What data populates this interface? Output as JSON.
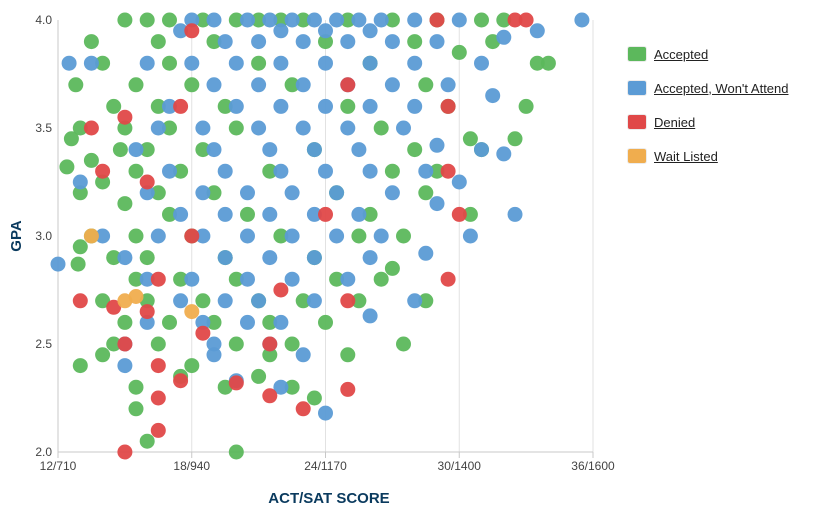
{
  "chart_data": {
    "type": "scatter",
    "title": "",
    "xlabel": "ACT/SAT SCORE",
    "ylabel": "GPA",
    "x_ticks": [
      12,
      18,
      24,
      30,
      36
    ],
    "x_tick_labels": [
      "12/710",
      "18/940",
      "24/1170",
      "30/1400",
      "36/1600"
    ],
    "y_ticks": [
      2.0,
      2.5,
      3.0,
      3.5,
      4.0
    ],
    "y_tick_labels": [
      "2.0",
      "2.5",
      "3.0",
      "3.5",
      "4.0"
    ],
    "xlim": [
      12,
      36
    ],
    "ylim": [
      2.0,
      4.0
    ],
    "grid": "x",
    "legend_position": "right",
    "series": [
      {
        "name": "Accepted",
        "color": "#5cb85c",
        "points": [
          [
            15.0,
            4.0
          ],
          [
            16.0,
            4.0
          ],
          [
            17.0,
            4.0
          ],
          [
            18.5,
            4.0
          ],
          [
            20.0,
            4.0
          ],
          [
            21.0,
            4.0
          ],
          [
            22.0,
            4.0
          ],
          [
            23.0,
            4.0
          ],
          [
            25.0,
            4.0
          ],
          [
            27.0,
            4.0
          ],
          [
            29.0,
            4.0
          ],
          [
            31.0,
            4.0
          ],
          [
            32.0,
            4.0
          ],
          [
            13.5,
            3.9
          ],
          [
            16.5,
            3.9
          ],
          [
            19.0,
            3.9
          ],
          [
            24.0,
            3.9
          ],
          [
            28.0,
            3.9
          ],
          [
            31.5,
            3.9
          ],
          [
            14.0,
            3.8
          ],
          [
            17.0,
            3.8
          ],
          [
            21.0,
            3.8
          ],
          [
            26.0,
            3.8
          ],
          [
            30.0,
            3.85
          ],
          [
            33.5,
            3.8
          ],
          [
            34.0,
            3.8
          ],
          [
            12.8,
            3.7
          ],
          [
            15.5,
            3.7
          ],
          [
            18.0,
            3.7
          ],
          [
            22.5,
            3.7
          ],
          [
            28.5,
            3.7
          ],
          [
            14.5,
            3.6
          ],
          [
            16.5,
            3.6
          ],
          [
            19.5,
            3.6
          ],
          [
            25.0,
            3.6
          ],
          [
            29.5,
            3.6
          ],
          [
            33.0,
            3.6
          ],
          [
            13.0,
            3.5
          ],
          [
            15.0,
            3.5
          ],
          [
            17.0,
            3.5
          ],
          [
            20.0,
            3.5
          ],
          [
            26.5,
            3.5
          ],
          [
            30.5,
            3.45
          ],
          [
            32.5,
            3.45
          ],
          [
            12.6,
            3.45
          ],
          [
            14.8,
            3.4
          ],
          [
            16.0,
            3.4
          ],
          [
            18.5,
            3.4
          ],
          [
            23.5,
            3.4
          ],
          [
            28.0,
            3.4
          ],
          [
            31.0,
            3.4
          ],
          [
            13.5,
            3.35
          ],
          [
            15.5,
            3.3
          ],
          [
            17.5,
            3.3
          ],
          [
            21.5,
            3.3
          ],
          [
            27.0,
            3.3
          ],
          [
            29.0,
            3.3
          ],
          [
            12.4,
            3.32
          ],
          [
            14.0,
            3.25
          ],
          [
            16.5,
            3.2
          ],
          [
            19.0,
            3.2
          ],
          [
            24.5,
            3.2
          ],
          [
            28.5,
            3.2
          ],
          [
            13.0,
            3.2
          ],
          [
            15.0,
            3.15
          ],
          [
            17.0,
            3.1
          ],
          [
            20.5,
            3.1
          ],
          [
            26.0,
            3.1
          ],
          [
            30.5,
            3.1
          ],
          [
            13.5,
            3.0
          ],
          [
            15.5,
            3.0
          ],
          [
            18.0,
            3.0
          ],
          [
            22.0,
            3.0
          ],
          [
            25.5,
            3.0
          ],
          [
            27.5,
            3.0
          ],
          [
            13.0,
            2.95
          ],
          [
            14.5,
            2.9
          ],
          [
            16.0,
            2.9
          ],
          [
            19.5,
            2.9
          ],
          [
            23.5,
            2.9
          ],
          [
            27.0,
            2.85
          ],
          [
            12.9,
            2.87
          ],
          [
            15.5,
            2.8
          ],
          [
            17.5,
            2.8
          ],
          [
            20.0,
            2.8
          ],
          [
            24.5,
            2.8
          ],
          [
            26.5,
            2.8
          ],
          [
            28.5,
            2.7
          ],
          [
            14.0,
            2.7
          ],
          [
            16.0,
            2.7
          ],
          [
            18.5,
            2.7
          ],
          [
            21.0,
            2.7
          ],
          [
            23.0,
            2.7
          ],
          [
            25.5,
            2.7
          ],
          [
            15.0,
            2.6
          ],
          [
            17.0,
            2.6
          ],
          [
            19.0,
            2.6
          ],
          [
            21.5,
            2.6
          ],
          [
            24.0,
            2.6
          ],
          [
            14.5,
            2.5
          ],
          [
            16.5,
            2.5
          ],
          [
            20.0,
            2.5
          ],
          [
            22.5,
            2.5
          ],
          [
            27.5,
            2.5
          ],
          [
            14.0,
            2.45
          ],
          [
            18.0,
            2.4
          ],
          [
            21.5,
            2.45
          ],
          [
            25.0,
            2.45
          ],
          [
            13.0,
            2.4
          ],
          [
            17.5,
            2.35
          ],
          [
            21.0,
            2.35
          ],
          [
            22.5,
            2.3
          ],
          [
            15.5,
            2.3
          ],
          [
            19.5,
            2.3
          ],
          [
            23.5,
            2.25
          ],
          [
            15.5,
            2.2
          ],
          [
            16.0,
            2.05
          ],
          [
            20.0,
            2.0
          ]
        ]
      },
      {
        "name": "Accepted, Won't Attend",
        "color": "#5b9bd5",
        "points": [
          [
            18.0,
            4.0
          ],
          [
            19.0,
            4.0
          ],
          [
            20.5,
            4.0
          ],
          [
            21.5,
            4.0
          ],
          [
            22.5,
            4.0
          ],
          [
            23.5,
            4.0
          ],
          [
            24.5,
            4.0
          ],
          [
            25.5,
            4.0
          ],
          [
            26.5,
            4.0
          ],
          [
            28.0,
            4.0
          ],
          [
            30.0,
            4.0
          ],
          [
            35.5,
            4.0
          ],
          [
            17.5,
            3.95
          ],
          [
            19.5,
            3.9
          ],
          [
            21.0,
            3.9
          ],
          [
            22.0,
            3.95
          ],
          [
            23.0,
            3.9
          ],
          [
            24.0,
            3.95
          ],
          [
            25.0,
            3.9
          ],
          [
            26.0,
            3.95
          ],
          [
            27.0,
            3.9
          ],
          [
            29.0,
            3.9
          ],
          [
            32.0,
            3.92
          ],
          [
            33.5,
            3.95
          ],
          [
            12.5,
            3.8
          ],
          [
            13.5,
            3.8
          ],
          [
            16.0,
            3.8
          ],
          [
            18.0,
            3.8
          ],
          [
            20.0,
            3.8
          ],
          [
            22.0,
            3.8
          ],
          [
            24.0,
            3.8
          ],
          [
            26.0,
            3.8
          ],
          [
            28.0,
            3.8
          ],
          [
            31.0,
            3.8
          ],
          [
            19.0,
            3.7
          ],
          [
            21.0,
            3.7
          ],
          [
            23.0,
            3.7
          ],
          [
            25.0,
            3.7
          ],
          [
            27.0,
            3.7
          ],
          [
            29.5,
            3.7
          ],
          [
            17.0,
            3.6
          ],
          [
            20.0,
            3.6
          ],
          [
            22.0,
            3.6
          ],
          [
            24.0,
            3.6
          ],
          [
            26.0,
            3.6
          ],
          [
            28.0,
            3.6
          ],
          [
            31.5,
            3.65
          ],
          [
            16.5,
            3.5
          ],
          [
            18.5,
            3.5
          ],
          [
            21.0,
            3.5
          ],
          [
            23.0,
            3.5
          ],
          [
            25.0,
            3.5
          ],
          [
            27.5,
            3.5
          ],
          [
            15.5,
            3.4
          ],
          [
            19.0,
            3.4
          ],
          [
            21.5,
            3.4
          ],
          [
            23.5,
            3.4
          ],
          [
            25.5,
            3.4
          ],
          [
            29.0,
            3.42
          ],
          [
            31.0,
            3.4
          ],
          [
            32.0,
            3.38
          ],
          [
            17.0,
            3.3
          ],
          [
            19.5,
            3.3
          ],
          [
            22.0,
            3.3
          ],
          [
            24.0,
            3.3
          ],
          [
            26.0,
            3.3
          ],
          [
            28.5,
            3.3
          ],
          [
            13.0,
            3.25
          ],
          [
            16.0,
            3.2
          ],
          [
            18.5,
            3.2
          ],
          [
            20.5,
            3.2
          ],
          [
            22.5,
            3.2
          ],
          [
            24.5,
            3.2
          ],
          [
            27.0,
            3.2
          ],
          [
            30.0,
            3.25
          ],
          [
            17.5,
            3.1
          ],
          [
            19.5,
            3.1
          ],
          [
            21.5,
            3.1
          ],
          [
            23.5,
            3.1
          ],
          [
            25.5,
            3.1
          ],
          [
            29.0,
            3.15
          ],
          [
            32.5,
            3.1
          ],
          [
            14.0,
            3.0
          ],
          [
            16.5,
            3.0
          ],
          [
            18.5,
            3.0
          ],
          [
            20.5,
            3.0
          ],
          [
            22.5,
            3.0
          ],
          [
            24.5,
            3.0
          ],
          [
            26.5,
            3.0
          ],
          [
            30.5,
            3.0
          ],
          [
            12.0,
            2.87
          ],
          [
            15.0,
            2.9
          ],
          [
            19.5,
            2.9
          ],
          [
            21.5,
            2.9
          ],
          [
            23.5,
            2.9
          ],
          [
            26.0,
            2.9
          ],
          [
            28.5,
            2.92
          ],
          [
            16.0,
            2.8
          ],
          [
            18.0,
            2.8
          ],
          [
            20.5,
            2.8
          ],
          [
            22.5,
            2.8
          ],
          [
            25.0,
            2.8
          ],
          [
            17.5,
            2.7
          ],
          [
            19.5,
            2.7
          ],
          [
            21.0,
            2.7
          ],
          [
            23.5,
            2.7
          ],
          [
            28.0,
            2.7
          ],
          [
            16.0,
            2.6
          ],
          [
            18.5,
            2.6
          ],
          [
            20.5,
            2.6
          ],
          [
            22.0,
            2.6
          ],
          [
            26.0,
            2.63
          ],
          [
            15.0,
            2.5
          ],
          [
            19.0,
            2.5
          ],
          [
            21.5,
            2.5
          ],
          [
            23.0,
            2.45
          ],
          [
            19.0,
            2.45
          ],
          [
            15.0,
            2.4
          ],
          [
            20.0,
            2.33
          ],
          [
            22.0,
            2.3
          ],
          [
            24.0,
            2.18
          ]
        ]
      },
      {
        "name": "Denied",
        "color": "#e04848",
        "points": [
          [
            32.5,
            4.0
          ],
          [
            33.0,
            4.0
          ],
          [
            29.0,
            4.0
          ],
          [
            18.0,
            3.95
          ],
          [
            25.0,
            3.7
          ],
          [
            13.5,
            3.5
          ],
          [
            15.0,
            3.55
          ],
          [
            29.5,
            3.6
          ],
          [
            17.5,
            3.6
          ],
          [
            14.0,
            3.3
          ],
          [
            16.0,
            3.25
          ],
          [
            18.0,
            3.0
          ],
          [
            24.0,
            3.1
          ],
          [
            29.5,
            3.3
          ],
          [
            30.0,
            3.1
          ],
          [
            16.5,
            2.8
          ],
          [
            22.0,
            2.75
          ],
          [
            25.0,
            2.7
          ],
          [
            13.0,
            2.7
          ],
          [
            14.5,
            2.67
          ],
          [
            16.0,
            2.65
          ],
          [
            18.5,
            2.55
          ],
          [
            21.5,
            2.5
          ],
          [
            15.0,
            2.5
          ],
          [
            16.5,
            2.4
          ],
          [
            17.5,
            2.33
          ],
          [
            20.0,
            2.32
          ],
          [
            21.5,
            2.26
          ],
          [
            23.0,
            2.2
          ],
          [
            25.0,
            2.29
          ],
          [
            16.5,
            2.25
          ],
          [
            16.5,
            2.1
          ],
          [
            15.0,
            2.0
          ],
          [
            29.5,
            2.8
          ]
        ]
      },
      {
        "name": "Wait Listed",
        "color": "#f0ad4e",
        "points": [
          [
            13.5,
            3.0
          ],
          [
            15.0,
            2.7
          ],
          [
            15.5,
            2.72
          ],
          [
            18.0,
            2.65
          ]
        ]
      }
    ]
  },
  "legend": {
    "items": [
      {
        "label": "Accepted",
        "color": "#5cb85c"
      },
      {
        "label": "Accepted, Won't Attend",
        "color": "#5b9bd5"
      },
      {
        "label": "Denied",
        "color": "#e04848"
      },
      {
        "label": "Wait Listed",
        "color": "#f0ad4e"
      }
    ]
  }
}
